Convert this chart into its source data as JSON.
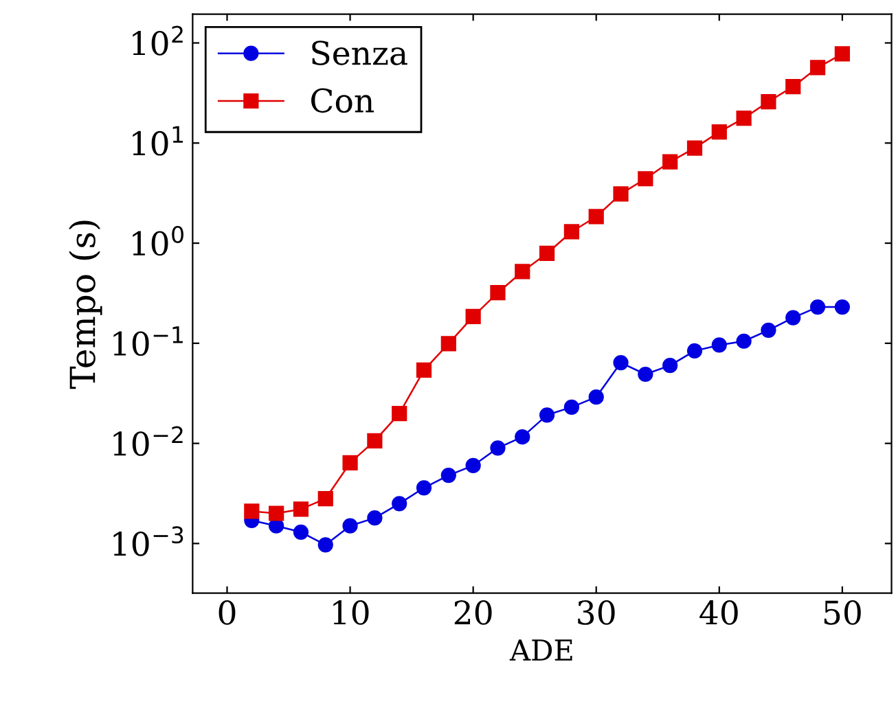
{
  "chart_data": {
    "type": "line",
    "xlabel": "ADE",
    "ylabel": "Tempo (s)",
    "log": "y",
    "x": [
      2,
      4,
      6,
      8,
      10,
      12,
      14,
      16,
      18,
      20,
      22,
      24,
      26,
      28,
      30,
      32,
      34,
      36,
      38,
      40,
      42,
      44,
      46,
      48,
      50
    ],
    "series": [
      {
        "name": "Senza",
        "color": "#0000e0",
        "marker": "circle",
        "values": [
          0.0017,
          0.0015,
          0.0013,
          0.00097,
          0.0015,
          0.0018,
          0.0025,
          0.0036,
          0.0048,
          0.006,
          0.009,
          0.0116,
          0.0192,
          0.023,
          0.029,
          0.064,
          0.049,
          0.06,
          0.084,
          0.096,
          0.105,
          0.135,
          0.18,
          0.23,
          0.23
        ]
      },
      {
        "name": "Con",
        "color": "#e00000",
        "marker": "square",
        "values": [
          0.0021,
          0.002,
          0.0022,
          0.0028,
          0.0064,
          0.0106,
          0.0199,
          0.054,
          0.099,
          0.185,
          0.32,
          0.52,
          0.79,
          1.3,
          1.84,
          3.1,
          4.4,
          6.5,
          8.9,
          12.9,
          17.7,
          25.9,
          36.6,
          56.8,
          77.8
        ]
      }
    ],
    "xlim": [
      -2.8,
      54
    ],
    "xticks": [
      0,
      10,
      20,
      30,
      40,
      50
    ],
    "ylim": [
      0.00032,
      194
    ],
    "yticks": [
      {
        "value": 0.001,
        "label": "10$^{−3}$"
      },
      {
        "value": 0.01,
        "label": "10$^{−2}$"
      },
      {
        "value": 0.1,
        "label": "10$^{−1}$"
      },
      {
        "value": 1,
        "label": "10$^{0}$"
      },
      {
        "value": 10,
        "label": "10$^{1}$"
      },
      {
        "value": 100,
        "label": "10$^{2}$"
      }
    ],
    "grid": false,
    "legend": "top left"
  }
}
